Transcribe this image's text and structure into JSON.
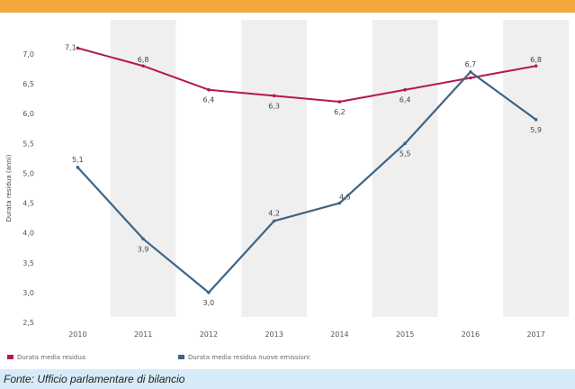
{
  "chart_data": {
    "type": "line",
    "categories": [
      "2010",
      "2011",
      "2012",
      "2013",
      "2014",
      "2015",
      "2016",
      "2017"
    ],
    "ylabel": "Durata residua (anni)",
    "ylim": [
      2.5,
      7.0
    ],
    "yticks": [
      "2,5",
      "3,0",
      "3,5",
      "4,0",
      "4,5",
      "5,0",
      "5,5",
      "6,0",
      "6,5",
      "7,0"
    ],
    "ytick_values": [
      2.5,
      3.0,
      3.5,
      4.0,
      4.5,
      5.0,
      5.5,
      6.0,
      6.5,
      7.0
    ],
    "alternating_bands": true,
    "legend_position": "bottom-left",
    "series": [
      {
        "name": "Durata media residua",
        "color": "#b5184e",
        "values": [
          7.1,
          6.8,
          6.4,
          6.3,
          6.2,
          6.4,
          6.6,
          6.8
        ],
        "labels": [
          "7,1",
          "6,8",
          "6,4",
          "6,3",
          "6,2",
          "6,4",
          "",
          "6,8"
        ]
      },
      {
        "name": "Durata media residua nuove emissioni",
        "color": "#3e6485",
        "values": [
          5.1,
          3.9,
          3.0,
          4.2,
          4.5,
          5.5,
          6.7,
          5.9
        ],
        "labels": [
          "5,1",
          "3,9",
          "3,0",
          "4,2",
          "4,5",
          "5,5",
          "6,7",
          "5,9"
        ]
      }
    ]
  },
  "source_note": "Fonte: Ufficio parlamentare di bilancio",
  "colors": {
    "header_band": "#f0a83a",
    "page_background": "#d6ebf7",
    "band_fill": "#efefef"
  }
}
